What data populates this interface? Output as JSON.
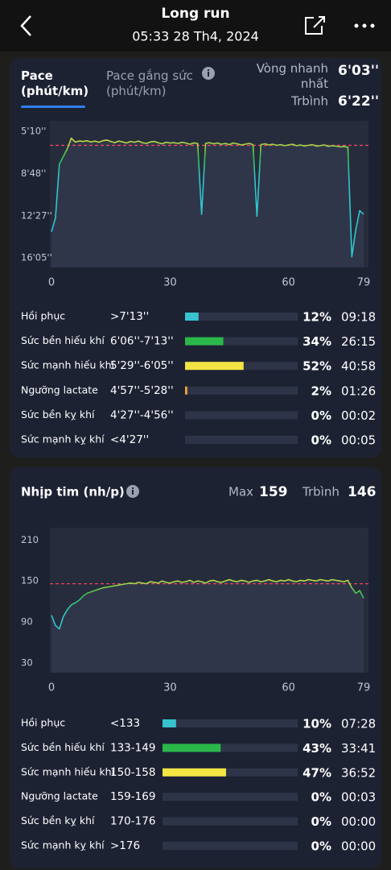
{
  "header": {
    "title": "Long run",
    "subtitle": "05:33 28 Th4, 2024"
  },
  "pace_card": {
    "tabs": [
      "Pace (phút/km)",
      "Pace gắng sức (phút/km)"
    ],
    "fastest_label": "Vòng nhanh nhất",
    "fastest_value": "6'03''",
    "average_label": "Trbình"
  },
  "hr_card": {
    "title": "Nhịp tim (nh/p)",
    "max_label": "Max",
    "max_value": 159,
    "average_label": "Trbình"
  },
  "chart_data": [
    {
      "type": "line",
      "invert": true,
      "x": [
        0,
        1,
        2,
        3,
        4,
        5,
        6,
        7,
        8,
        9,
        10,
        11,
        12,
        13,
        14,
        15,
        16,
        17,
        18,
        19,
        20,
        21,
        22,
        23,
        24,
        25,
        26,
        27,
        28,
        29,
        30,
        31,
        32,
        33,
        34,
        35,
        36,
        37,
        38,
        39,
        40,
        41,
        42,
        43,
        44,
        45,
        46,
        47,
        48,
        49,
        50,
        51,
        52,
        53,
        54,
        55,
        56,
        57,
        58,
        59,
        60,
        61,
        62,
        63,
        64,
        65,
        66,
        67,
        68,
        69,
        70,
        71,
        72,
        73,
        74,
        75,
        76,
        77,
        78,
        79
      ],
      "values": [
        830,
        760,
        480,
        440,
        400,
        345,
        365,
        360,
        362,
        358,
        365,
        360,
        366,
        358,
        355,
        362,
        368,
        360,
        364,
        370,
        362,
        366,
        360,
        368,
        372,
        365,
        362,
        368,
        374,
        366,
        370,
        368,
        372,
        366,
        370,
        376,
        370,
        372,
        740,
        372,
        368,
        374,
        370,
        376,
        372,
        378,
        370,
        374,
        380,
        376,
        372,
        378,
        750,
        378,
        374,
        380,
        376,
        382,
        378,
        384,
        380,
        376,
        384,
        380,
        386,
        382,
        378,
        386,
        384,
        380,
        388,
        384,
        386,
        390,
        388,
        392,
        960,
        820,
        720,
        740
      ],
      "colors": [
        "#f2e443",
        "#35c14e",
        "#2fc6cc"
      ],
      "xlim": [
        0,
        79
      ],
      "xticks": [
        0,
        30,
        60,
        79
      ],
      "ylim": [
        255,
        1015
      ],
      "yticks": [
        {
          "value": 310,
          "label": "5'10''"
        },
        {
          "value": 528,
          "label": "8'48''"
        },
        {
          "value": 747,
          "label": "12'27''"
        },
        {
          "value": 965,
          "label": "16'05''"
        }
      ],
      "reference_line": {
        "value": 382,
        "label": "6'22''",
        "color": "#e8455e"
      }
    },
    {
      "type": "bar",
      "categories": [
        "Hồi phục",
        "Sức bền hiếu khí",
        "Sức mạnh hiếu khí",
        "Ngưỡng lactate",
        "Sức bền kỵ khí",
        "Sức mạnh kỵ khí"
      ],
      "ranges": [
        ">7'13''",
        "6'06''-7'13''",
        "5'29''-6'05''",
        "4'57''-5'28''",
        "4'27''-4'56''",
        "<4'27''"
      ],
      "values": [
        12,
        34,
        52,
        2,
        0,
        0
      ],
      "value_labels": [
        "12%",
        "34%",
        "52%",
        "2%",
        "0%",
        "0%"
      ],
      "times": [
        "09:18",
        "26:15",
        "40:58",
        "01:26",
        "00:02",
        "00:05"
      ],
      "colors": [
        "#36c3cf",
        "#2ab84a",
        "#f2e443",
        "#f0a532",
        "#e6642f",
        "#d8383a"
      ],
      "xlim": [
        0,
        100
      ]
    },
    {
      "type": "line",
      "invert": false,
      "x": [
        0,
        1,
        2,
        3,
        4,
        5,
        6,
        7,
        8,
        9,
        10,
        11,
        12,
        13,
        14,
        15,
        16,
        17,
        18,
        19,
        20,
        21,
        22,
        23,
        24,
        25,
        26,
        27,
        28,
        29,
        30,
        31,
        32,
        33,
        34,
        35,
        36,
        37,
        38,
        39,
        40,
        41,
        42,
        43,
        44,
        45,
        46,
        47,
        48,
        49,
        50,
        51,
        52,
        53,
        54,
        55,
        56,
        57,
        58,
        59,
        60,
        61,
        62,
        63,
        64,
        65,
        66,
        67,
        68,
        69,
        70,
        71,
        72,
        73,
        74,
        75,
        76,
        77,
        78,
        79
      ],
      "values": [
        100,
        85,
        80,
        98,
        108,
        115,
        118,
        122,
        128,
        132,
        134,
        136,
        138,
        140,
        141,
        142,
        143,
        144,
        145,
        146,
        147,
        146,
        148,
        147,
        146,
        149,
        148,
        147,
        150,
        148,
        147,
        149,
        150,
        148,
        149,
        151,
        148,
        150,
        149,
        147,
        150,
        151,
        149,
        148,
        150,
        152,
        150,
        149,
        151,
        150,
        148,
        150,
        151,
        149,
        150,
        152,
        150,
        149,
        151,
        150,
        152,
        150,
        149,
        151,
        150,
        152,
        151,
        150,
        152,
        151,
        150,
        152,
        151,
        150,
        149,
        151,
        140,
        132,
        136,
        125
      ],
      "colors": [
        "#f2e443",
        "#35c14e",
        "#2fc6cc"
      ],
      "xlim": [
        0,
        79
      ],
      "xticks": [
        0,
        30,
        60,
        79
      ],
      "ylim": [
        16,
        228
      ],
      "yticks": [
        30,
        90,
        150,
        210
      ],
      "reference_line": {
        "value": 146,
        "color": "#e8455e"
      }
    },
    {
      "type": "bar",
      "categories": [
        "Hồi phục",
        "Sức bền hiếu khí",
        "Sức mạnh hiếu khí",
        "Ngưỡng lactate",
        "Sức bền kỵ khí",
        "Sức mạnh kỵ khí"
      ],
      "ranges": [
        "<133",
        "133-149",
        "150-158",
        "159-169",
        "170-176",
        ">176"
      ],
      "values": [
        10,
        43,
        47,
        0,
        0,
        0
      ],
      "value_labels": [
        "10%",
        "43%",
        "47%",
        "0%",
        "0%",
        "0%"
      ],
      "times": [
        "07:28",
        "33:41",
        "36:52",
        "00:03",
        "00:00",
        "00:00"
      ],
      "colors": [
        "#36c3cf",
        "#2ab84a",
        "#f2e443",
        "#f0a532",
        "#e6642f",
        "#d8383a"
      ],
      "xlim": [
        0,
        100
      ]
    }
  ]
}
